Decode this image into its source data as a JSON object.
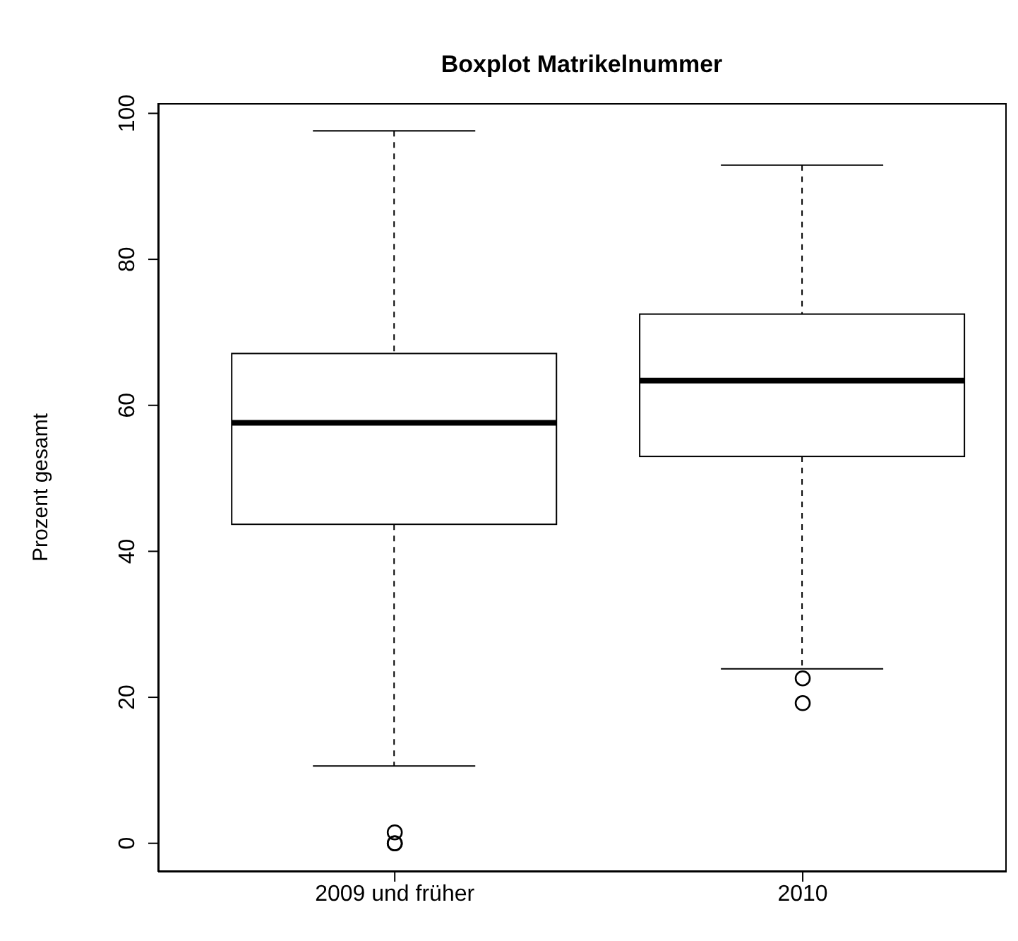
{
  "chart_data": {
    "type": "box",
    "title": "Boxplot Matrikelnummer",
    "ylabel": "Prozent gesamt",
    "categories": [
      "2009 und früher",
      "2010"
    ],
    "boxes": [
      {
        "low": 10.6,
        "q1": 43.7,
        "median": 57.6,
        "q3": 67.1,
        "high": 97.6,
        "outliers": [
          0,
          0,
          1.5
        ]
      },
      {
        "low": 23.9,
        "q1": 53.0,
        "median": 63.4,
        "q3": 72.5,
        "high": 92.9,
        "outliers": [
          19.2,
          22.6
        ]
      }
    ],
    "ylim": [
      -3.9,
      101.4
    ],
    "yticks": [
      0,
      20,
      40,
      60,
      80,
      100
    ]
  }
}
